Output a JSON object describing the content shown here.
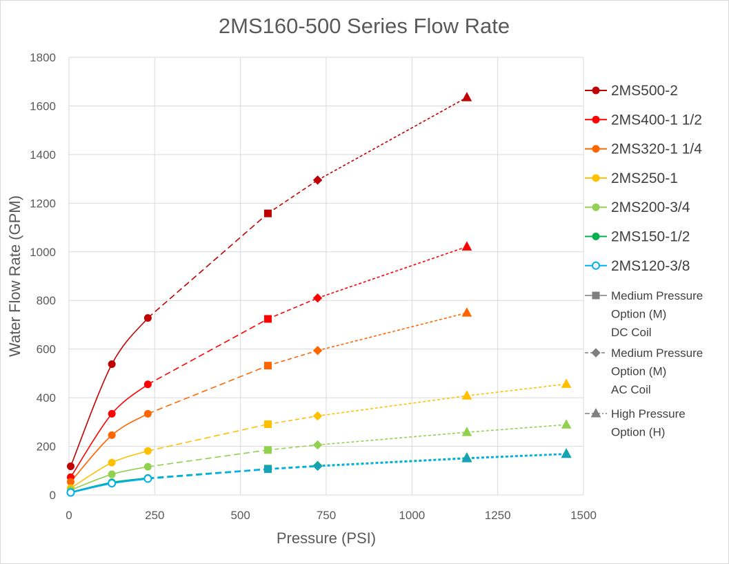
{
  "chart_data": {
    "type": "line",
    "title": "2MS160-500 Series Flow Rate",
    "xlabel": "Pressure (PSI)",
    "ylabel": "Water Flow Rate (GPM)",
    "xlim": [
      0,
      1500
    ],
    "ylim": [
      0,
      1800
    ],
    "xticks": [
      0,
      250,
      500,
      750,
      1000,
      1250,
      1500
    ],
    "yticks": [
      0,
      200,
      400,
      600,
      800,
      1000,
      1200,
      1400,
      1600,
      1800
    ],
    "grid": true,
    "legend_position": "right",
    "series": [
      {
        "name": "2MS500-2",
        "color": "#c00000",
        "low": [
          [
            5,
            118
          ],
          [
            125,
            538
          ],
          [
            230,
            728
          ]
        ],
        "m_dc": [
          [
            580,
            1158
          ]
        ],
        "m_ac": [
          [
            725,
            1295
          ]
        ],
        "h": [
          [
            1160,
            1635
          ]
        ]
      },
      {
        "name": "2MS400-1 1/2",
        "color": "#ff0000",
        "low": [
          [
            5,
            73
          ],
          [
            125,
            334
          ],
          [
            230,
            455
          ]
        ],
        "m_dc": [
          [
            580,
            724
          ]
        ],
        "m_ac": [
          [
            725,
            810
          ]
        ],
        "h": [
          [
            1160,
            1021
          ]
        ]
      },
      {
        "name": "2MS320-1 1/4",
        "color": "#ff6600",
        "low": [
          [
            5,
            54
          ],
          [
            125,
            246
          ],
          [
            230,
            334
          ]
        ],
        "m_dc": [
          [
            580,
            532
          ]
        ],
        "m_ac": [
          [
            725,
            594
          ]
        ],
        "h": [
          [
            1160,
            749
          ]
        ]
      },
      {
        "name": "2MS250-1",
        "color": "#ffc000",
        "low": [
          [
            5,
            28
          ],
          [
            125,
            133
          ],
          [
            230,
            181
          ]
        ],
        "m_dc": [
          [
            580,
            291
          ]
        ],
        "m_ac": [
          [
            725,
            325
          ]
        ],
        "h": [
          [
            1160,
            408
          ],
          [
            1450,
            456
          ]
        ]
      },
      {
        "name": "2MS200-3/4",
        "color": "#92d050",
        "low": [
          [
            5,
            20
          ],
          [
            125,
            85
          ],
          [
            230,
            116
          ]
        ],
        "m_dc": [
          [
            580,
            185
          ]
        ],
        "m_ac": [
          [
            725,
            206
          ]
        ],
        "h": [
          [
            1160,
            258
          ],
          [
            1450,
            289
          ]
        ]
      },
      {
        "name": "2MS150-1/2",
        "color": "#00b050",
        "low": [
          [
            5,
            12
          ],
          [
            125,
            52
          ],
          [
            230,
            70
          ]
        ],
        "m_dc": [
          [
            580,
            108
          ]
        ],
        "m_ac": [
          [
            725,
            121
          ]
        ],
        "h": [
          [
            1160,
            153
          ],
          [
            1450,
            170
          ]
        ]
      },
      {
        "name": "2MS120-3/8",
        "color": "#00b0f0",
        "hollow": true,
        "low": [
          [
            5,
            10
          ],
          [
            125,
            48
          ],
          [
            230,
            67
          ]
        ],
        "m_dc": [
          [
            580,
            106
          ]
        ],
        "m_ac": [
          [
            725,
            118
          ]
        ],
        "h": [
          [
            1160,
            150
          ],
          [
            1450,
            168
          ]
        ]
      }
    ],
    "option_legend": [
      {
        "marker": "square",
        "dash": "solid",
        "lines": [
          "Medium Pressure",
          "Option (M)",
          "DC Coil"
        ]
      },
      {
        "marker": "diamond",
        "dash": "dashed",
        "lines": [
          "Medium Pressure",
          "Option (M)",
          "AC Coil"
        ]
      },
      {
        "marker": "triangle",
        "dash": "dashdot",
        "lines": [
          "High Pressure",
          "Option (H)"
        ]
      }
    ],
    "option_legend_color": "#7f7f7f",
    "high_pressure_overlap_color": "#17a2b8"
  }
}
